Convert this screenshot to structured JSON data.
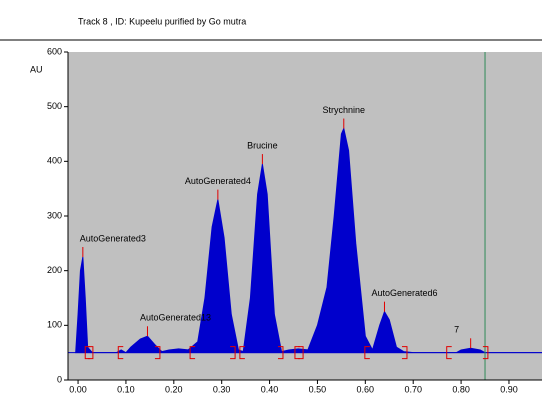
{
  "chart_data": {
    "type": "chromatogram",
    "title": "Track  8 , ID: Kupeelu purified by Go mutra",
    "y_label": "AU",
    "xlim": [
      -0.021,
      0.969
    ],
    "ylim": [
      0,
      600
    ],
    "xticks": [
      {
        "value": 0.0,
        "label": "0.00"
      },
      {
        "value": 0.1,
        "label": "0.10"
      },
      {
        "value": 0.2,
        "label": "0.20"
      },
      {
        "value": 0.3,
        "label": "0.30"
      },
      {
        "value": 0.4,
        "label": "0.40"
      },
      {
        "value": 0.5,
        "label": "0.50"
      },
      {
        "value": 0.6,
        "label": "0.60"
      },
      {
        "value": 0.7,
        "label": "0.70"
      },
      {
        "value": 0.8,
        "label": "0.80"
      },
      {
        "value": 0.9,
        "label": "0.90"
      }
    ],
    "yticks": [
      0,
      100,
      200,
      300,
      400,
      500,
      600
    ],
    "baseline": 50,
    "color": "#0000cc",
    "background": "#c0c0c0",
    "marker_x": 0.85,
    "marker_color": "#2e8b57",
    "x": [
      -0.005,
      0.0,
      0.005,
      0.01,
      0.015,
      0.02,
      0.03,
      0.08,
      0.09,
      0.1,
      0.11,
      0.13,
      0.145,
      0.16,
      0.175,
      0.19,
      0.21,
      0.23,
      0.25,
      0.265,
      0.28,
      0.292,
      0.305,
      0.32,
      0.335,
      0.345,
      0.36,
      0.375,
      0.385,
      0.395,
      0.41,
      0.425,
      0.44,
      0.46,
      0.48,
      0.5,
      0.52,
      0.535,
      0.55,
      0.555,
      0.565,
      0.58,
      0.6,
      0.615,
      0.63,
      0.64,
      0.65,
      0.665,
      0.68,
      0.7,
      0.79,
      0.8,
      0.82,
      0.84,
      0.85,
      0.969
    ],
    "values": [
      50,
      120,
      200,
      225,
      150,
      60,
      50,
      50,
      55,
      50,
      60,
      75,
      80,
      65,
      52,
      55,
      57,
      55,
      70,
      150,
      280,
      330,
      260,
      120,
      55,
      52,
      150,
      340,
      395,
      340,
      120,
      52,
      55,
      57,
      55,
      100,
      170,
      300,
      450,
      460,
      420,
      250,
      80,
      55,
      100,
      125,
      110,
      60,
      52,
      50,
      50,
      55,
      58,
      55,
      50,
      50
    ],
    "peaks": [
      {
        "label": "AutoGenerated3",
        "x": 0.01,
        "height": 225
      },
      {
        "label": "AutoGenerated13",
        "x": 0.145,
        "height": 80
      },
      {
        "label": "AutoGenerated4",
        "x": 0.292,
        "height": 330
      },
      {
        "label": "Brucine",
        "x": 0.385,
        "height": 395
      },
      {
        "label": "Strychnine",
        "x": 0.555,
        "height": 460
      },
      {
        "label": "AutoGenerated6",
        "x": 0.64,
        "height": 125
      },
      {
        "label": "7",
        "x": 0.82,
        "height": 58
      }
    ],
    "peak_color": "#e00000",
    "integration_bounds": [
      0.015,
      0.031,
      0.084,
      0.171,
      0.234,
      0.328,
      0.338,
      0.428,
      0.453,
      0.47,
      0.599,
      0.687,
      0.77,
      0.856
    ]
  }
}
